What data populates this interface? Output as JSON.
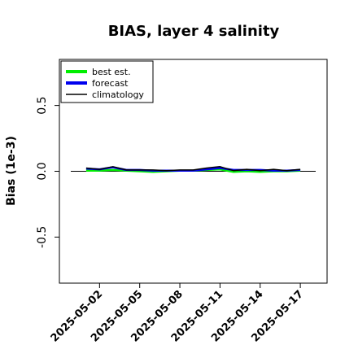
{
  "chart_data": {
    "type": "line",
    "title": "BIAS, layer 4 salinity",
    "xlabel": "",
    "ylabel": "Bias (1e-3)",
    "ylim": [
      -0.85,
      0.85
    ],
    "xlim": [
      "2025-04-29",
      "2025-05-19"
    ],
    "yticks": [
      -0.5,
      0.0,
      0.5
    ],
    "ytick_labels": [
      "-0.5",
      "0.0",
      "0.5"
    ],
    "xticks": [
      "2025-05-02",
      "2025-05-05",
      "2025-05-08",
      "2025-05-11",
      "2025-05-14",
      "2025-05-17"
    ],
    "highlight_xtick": "2025-05-08",
    "highlight_color": "#228B22",
    "zero_line": true,
    "grid": false,
    "legend": {
      "position": "top-left"
    },
    "x": [
      "2025-05-01",
      "2025-05-02",
      "2025-05-03",
      "2025-05-04",
      "2025-05-05",
      "2025-05-06",
      "2025-05-07",
      "2025-05-08",
      "2025-05-09",
      "2025-05-10",
      "2025-05-11",
      "2025-05-12",
      "2025-05-13",
      "2025-05-14",
      "2025-05-15",
      "2025-05-16",
      "2025-05-17"
    ],
    "series": [
      {
        "name": "best est.",
        "color": "#00ee00",
        "values": [
          0.005,
          0.005,
          0.01,
          0.005,
          0.0,
          -0.005,
          0.0,
          0.005,
          0.005,
          0.01,
          0.015,
          -0.005,
          0.0,
          -0.005,
          0.0,
          0.0,
          0.005
        ]
      },
      {
        "name": "forecast",
        "color": "#0000ee",
        "values": [
          0.02,
          0.015,
          0.03,
          0.01,
          0.01,
          0.005,
          0.005,
          0.005,
          0.005,
          0.015,
          0.025,
          0.01,
          0.01,
          0.01,
          0.005,
          0.005,
          0.01
        ]
      },
      {
        "name": "climatology",
        "color": "#000000",
        "values": [
          0.025,
          0.015,
          0.035,
          0.01,
          0.01,
          0.01,
          0.005,
          0.01,
          0.01,
          0.025,
          0.035,
          0.005,
          0.015,
          0.005,
          0.015,
          0.005,
          0.015
        ]
      }
    ]
  }
}
